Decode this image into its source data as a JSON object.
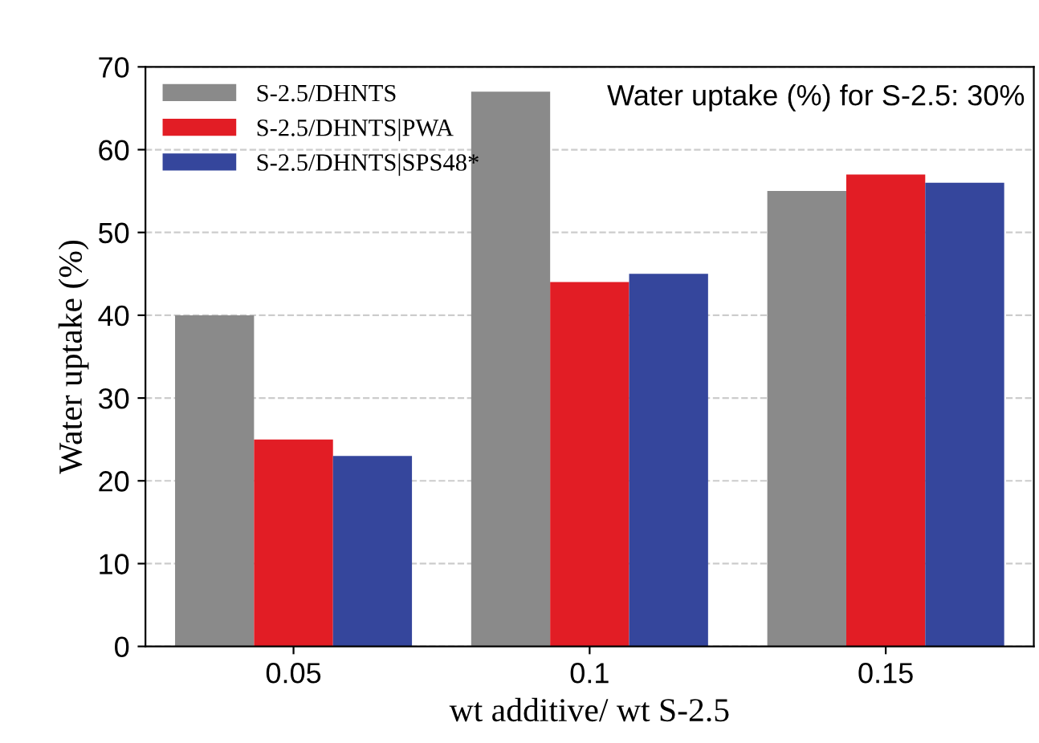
{
  "chart_data": {
    "type": "bar",
    "xlabel": "wt additive/ wt S-2.5",
    "ylabel": "Water uptake (%)",
    "categories": [
      "0.05",
      "0.1",
      "0.15"
    ],
    "series": [
      {
        "name": "S-2.5/DHNTS",
        "color": "#8a8a8a",
        "values": [
          40,
          67,
          55
        ]
      },
      {
        "name": "S-2.5/DHNTS|PWA",
        "color": "#e21d25",
        "values": [
          25,
          44,
          57
        ]
      },
      {
        "name": "S-2.5/DHNTS|SPS48*",
        "color": "#35469c",
        "values": [
          23,
          45,
          56
        ]
      }
    ],
    "ylim": [
      0,
      70
    ],
    "yticks": [
      0,
      10,
      20,
      30,
      40,
      50,
      60,
      70
    ],
    "grid": "y",
    "legend": "top left",
    "annotations": [
      "Water uptake (%) for S-2.5: 30%"
    ]
  }
}
